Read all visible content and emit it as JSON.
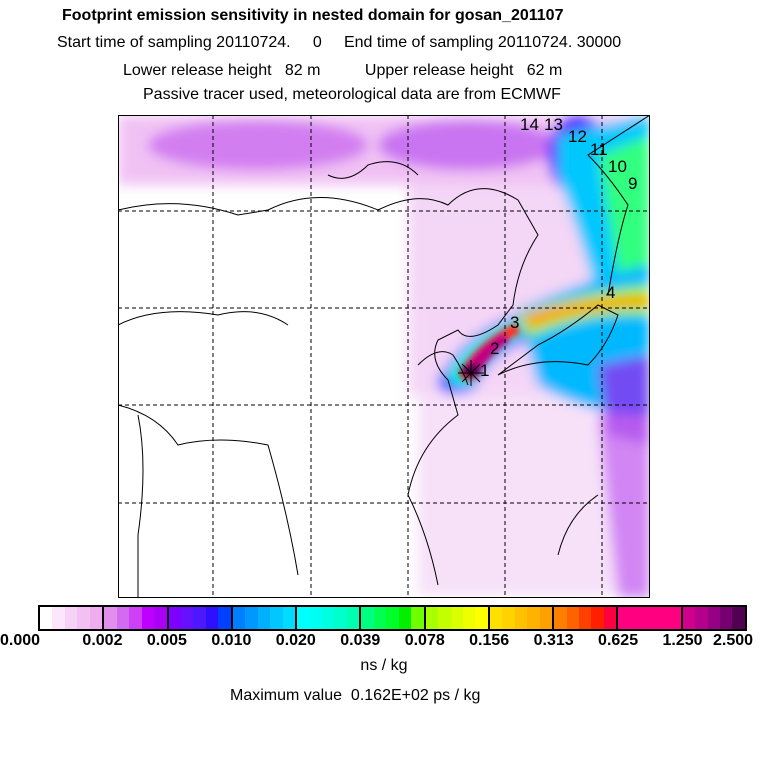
{
  "header": {
    "title": "Footprint emission sensitivity in nested domain for gosan_201107",
    "line2": "Start time of sampling 20110724.     0     End time of sampling 20110724. 30000",
    "line3": "Lower release height   82 m          Upper release height   62 m",
    "line4": "Passive tracer used, meteorological data are from ECMWF"
  },
  "map": {
    "day_labels": [
      "1",
      "2",
      "3",
      "4",
      "9",
      "10",
      "11",
      "12",
      "13",
      "14"
    ],
    "receptor_marker": "star-marker"
  },
  "colorbar": {
    "ticks": [
      "0.000",
      "0.002",
      "0.005",
      "0.010",
      "0.020",
      "0.039",
      "0.078",
      "0.156",
      "0.313",
      "0.625",
      "1.250",
      "2.500"
    ],
    "segments": [
      [
        "#ffffff",
        "#fbe6fb",
        "#f6d2f6",
        "#f2c0f2",
        "#eeadee"
      ],
      [
        "#e090ec",
        "#d46af2",
        "#cc40f8",
        "#c000ff",
        "#aa00f4"
      ],
      [
        "#7e00ff",
        "#6610ff",
        "#4c18ff",
        "#2e10ff",
        "#0040ff"
      ],
      [
        "#0080ff",
        "#0098ff",
        "#00b0ff",
        "#00c8ff",
        "#00dcff"
      ],
      [
        "#00ffff",
        "#00fff2",
        "#00ffe0",
        "#00ffca",
        "#00ffb0"
      ],
      [
        "#00ff80",
        "#00ff50",
        "#00ff28",
        "#00f000",
        "#70ff00"
      ],
      [
        "#a8ff00",
        "#c4ff00",
        "#daff00",
        "#eeff00",
        "#ffff00"
      ],
      [
        "#ffe000",
        "#ffd200",
        "#ffc200",
        "#ffb200",
        "#ffa000"
      ],
      [
        "#ff8000",
        "#ff6200",
        "#ff4000",
        "#ff2000",
        "#ff0040"
      ],
      [
        "#ff0080",
        "#ff0080",
        "#ff0080",
        "#ff0080",
        "#ff0080"
      ],
      [
        "#d0008c",
        "#b4008c",
        "#960084",
        "#760070",
        "#520052"
      ]
    ],
    "units": "ns / kg",
    "max_value_text": "Maximum value  0.162E+02 ps / kg"
  }
}
